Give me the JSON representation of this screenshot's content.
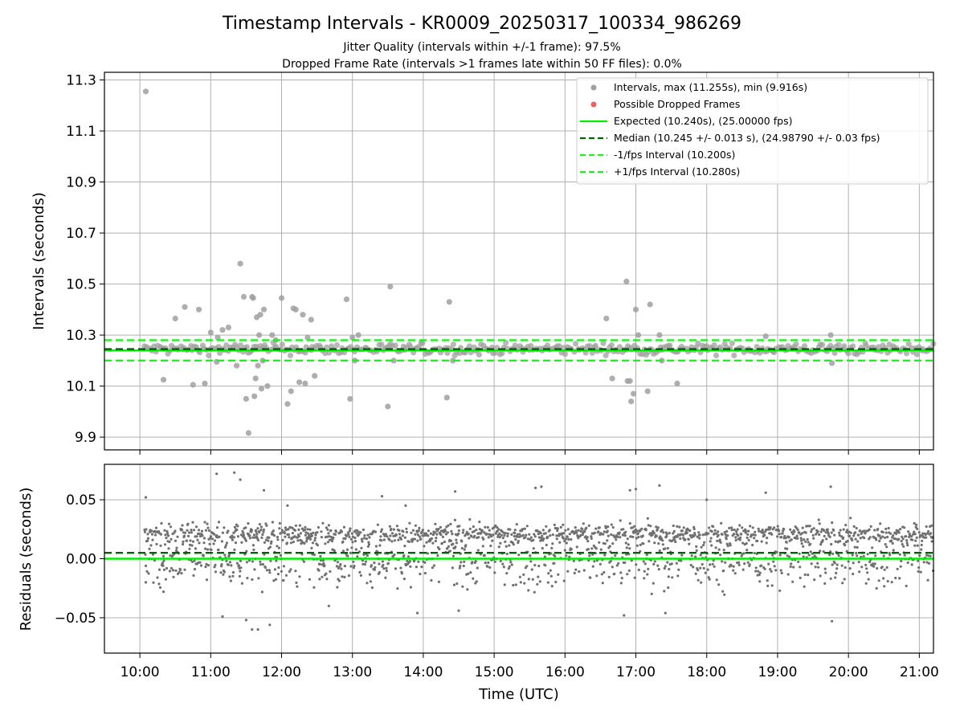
{
  "figure": {
    "title": "Timestamp Intervals - KR0009_20250317_100334_986269",
    "subtitle_1": "Jitter Quality (intervals within +/-1 frame): 97.5%",
    "subtitle_2": "Dropped Frame Rate (intervals >1 frames late within 50 FF files): 0.0%"
  },
  "chart_data": [
    {
      "type": "scatter",
      "panel": "top",
      "ylabel": "Intervals (seconds)",
      "ylim": [
        9.85,
        11.33
      ],
      "xlim": [
        "09:30",
        "21:12"
      ],
      "yticks": [
        "9.9",
        "10.1",
        "10.3",
        "10.5",
        "10.7",
        "10.9",
        "11.1",
        "11.3"
      ],
      "ytick_values": [
        9.9,
        10.1,
        10.3,
        10.5,
        10.7,
        10.9,
        11.1,
        11.3
      ],
      "grid": true,
      "legend_placement": "top-right",
      "legend": [
        "Intervals, max (11.255s), min (9.916s)",
        "Possible Dropped Frames",
        "Expected (10.240s), (25.00000 fps)",
        "Median (10.245 +/- 0.013 s), (24.98790 +/- 0.03 fps)",
        "-1/fps Interval (10.200s)",
        "+1/fps Interval (10.280s)"
      ],
      "reference_lines": {
        "expected": 10.24,
        "median": 10.245,
        "minus_1_fps": 10.2,
        "plus_1_fps": 10.28
      },
      "series": [
        {
          "name": "Intervals, max (11.255s), min (9.916s)",
          "color": "#a0a0a0",
          "band": {
            "time_range": [
              "10:03",
              "21:12"
            ],
            "y_range": [
              10.22,
              10.27
            ]
          },
          "x": [
            "10:05",
            "10:20",
            "10:30",
            "10:38",
            "10:45",
            "10:50",
            "10:55",
            "11:00",
            "11:05",
            "11:06",
            "11:10",
            "11:15",
            "11:22",
            "11:25",
            "11:28",
            "11:30",
            "11:32",
            "11:35",
            "11:36",
            "11:37",
            "11:38",
            "11:39",
            "11:40",
            "11:41",
            "11:42",
            "11:43",
            "11:44",
            "11:45",
            "11:48",
            "11:52",
            "11:55",
            "12:00",
            "12:05",
            "12:08",
            "12:10",
            "12:12",
            "12:15",
            "12:18",
            "12:20",
            "12:22",
            "12:25",
            "12:28",
            "12:55",
            "12:58",
            "13:00",
            "13:02",
            "13:05",
            "13:30",
            "13:32",
            "13:35",
            "14:20",
            "14:22",
            "14:25",
            "16:35",
            "16:40",
            "16:52",
            "16:53",
            "16:55",
            "16:56",
            "16:58",
            "17:00",
            "17:02",
            "17:10",
            "17:12",
            "17:20",
            "17:22",
            "17:35",
            "18:50",
            "19:45",
            "19:46"
          ],
          "values": [
            11.255,
            10.125,
            10.365,
            10.41,
            10.105,
            10.4,
            10.11,
            10.31,
            10.195,
            10.29,
            10.32,
            10.33,
            10.18,
            10.58,
            10.45,
            10.05,
            9.916,
            10.45,
            10.445,
            10.06,
            10.13,
            10.37,
            10.18,
            10.3,
            10.38,
            10.09,
            10.2,
            10.4,
            10.1,
            10.3,
            10.28,
            10.445,
            10.03,
            10.08,
            10.405,
            10.4,
            10.115,
            10.38,
            10.11,
            10.29,
            10.36,
            10.14,
            10.44,
            10.05,
            10.29,
            10.2,
            10.3,
            10.02,
            10.49,
            10.2,
            10.055,
            10.43,
            10.2,
            10.365,
            10.13,
            10.51,
            10.12,
            10.12,
            10.04,
            10.07,
            10.4,
            10.3,
            10.08,
            10.42,
            10.3,
            10.2,
            10.11,
            10.295,
            10.3,
            10.19
          ]
        },
        {
          "name": "Possible Dropped Frames",
          "color": "#f06060",
          "x": [],
          "values": []
        }
      ]
    },
    {
      "type": "scatter",
      "panel": "bottom",
      "ylabel": "Residuals (seconds)",
      "xlabel": "Time (UTC)",
      "ylim": [
        -0.08,
        0.08
      ],
      "yticks": [
        "−0.05",
        "0.00",
        "0.05"
      ],
      "ytick_values": [
        -0.05,
        0.0,
        0.05
      ],
      "xticks": [
        "10:00",
        "11:00",
        "12:00",
        "13:00",
        "14:00",
        "15:00",
        "16:00",
        "17:00",
        "18:00",
        "19:00",
        "20:00",
        "21:00"
      ],
      "grid": true,
      "reference_lines": {
        "expected": 0.0,
        "median": 0.005
      },
      "series": [
        {
          "name": "Residuals",
          "color": "#707070",
          "clusters": [
            {
              "center": 0.021,
              "spread": 0.004
            },
            {
              "center": 0.0,
              "spread": 0.012
            }
          ],
          "x": [
            "10:05",
            "10:05",
            "11:05",
            "11:10",
            "11:20",
            "11:25",
            "11:30",
            "11:35",
            "11:40",
            "11:45",
            "11:50",
            "12:05",
            "12:40",
            "13:25",
            "13:45",
            "13:55",
            "14:27",
            "14:30",
            "15:35",
            "15:40",
            "16:50",
            "16:55",
            "17:20",
            "17:25",
            "18:00",
            "18:50",
            "19:45",
            "19:46",
            "17:00",
            "10:20"
          ],
          "values": [
            0.052,
            -0.02,
            0.072,
            -0.049,
            0.073,
            0.067,
            -0.052,
            -0.06,
            -0.06,
            0.058,
            -0.056,
            0.045,
            -0.04,
            0.053,
            0.045,
            -0.046,
            0.057,
            -0.044,
            0.06,
            0.061,
            -0.048,
            0.058,
            0.062,
            -0.046,
            0.05,
            0.056,
            0.061,
            -0.053,
            0.059,
            -0.028
          ]
        }
      ]
    }
  ],
  "colors": {
    "expected": "#00ee00",
    "median": "#006400",
    "plus_minus_fps": "#22ee22",
    "grid": "#b0b0b0"
  }
}
